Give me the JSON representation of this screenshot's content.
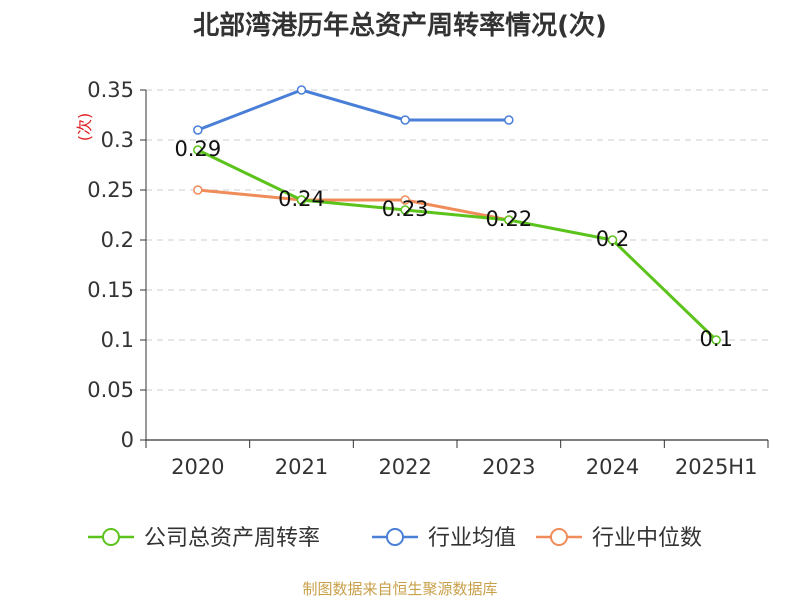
{
  "chart_data": {
    "type": "line",
    "title": "北部湾港历年总资产周转率情况(次)",
    "ylabel": "(次)",
    "xlabel": "",
    "ylim": [
      0,
      0.35
    ],
    "y_ticks": [
      "0",
      "0.05",
      "0.1",
      "0.15",
      "0.2",
      "0.25",
      "0.3",
      "0.35"
    ],
    "y_tick_values": [
      0,
      0.05,
      0.1,
      0.15,
      0.2,
      0.25,
      0.3,
      0.35
    ],
    "categories": [
      "2020",
      "2021",
      "2022",
      "2023",
      "2024",
      "2025H1"
    ],
    "grid": true,
    "legend_position": "bottom",
    "series": [
      {
        "name": "公司总资产周转率",
        "color": "#5cc31c",
        "values": [
          0.29,
          0.24,
          0.23,
          0.22,
          0.2,
          0.1
        ],
        "data_labels": [
          "0.29",
          "0.24",
          "0.23",
          "0.22",
          "0.2",
          "0.1"
        ]
      },
      {
        "name": "行业均值",
        "color": "#4a7fd8",
        "values": [
          0.31,
          0.35,
          0.32,
          0.32,
          null,
          null
        ]
      },
      {
        "name": "行业中位数",
        "color": "#f08c5a",
        "values": [
          0.25,
          0.24,
          0.24,
          0.22,
          null,
          null
        ]
      }
    ],
    "source": "制图数据来自恒生聚源数据库"
  }
}
